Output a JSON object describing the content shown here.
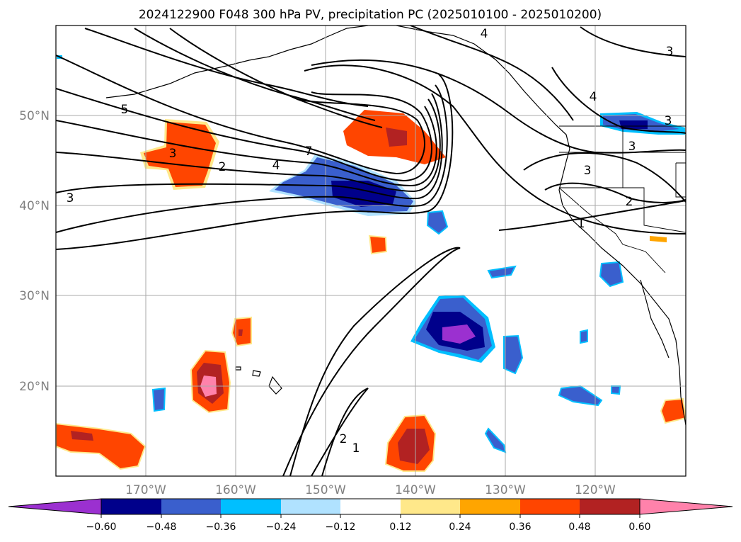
{
  "title": "2024122900 F048 300 hPa PV, precipitation PC (2025010100 - 2025010200)",
  "lon_labels": [
    "170°W",
    "160°W",
    "150°W",
    "140°W",
    "130°W",
    "120°W"
  ],
  "lat_labels": [
    "50°N",
    "40°N",
    "30°N",
    "20°N"
  ],
  "colorbar": {
    "ticks": [
      "−0.60",
      "−0.48",
      "−0.36",
      "−0.24",
      "−0.12",
      "0.12",
      "0.24",
      "0.36",
      "0.48",
      "0.60"
    ],
    "colors": [
      "#9b30d0",
      "#00008b",
      "#3a5fcd",
      "#00bfff",
      "#b0e2ff",
      "#ffffff",
      "#ffe88a",
      "#ffa500",
      "#ff4500",
      "#b22222",
      "#ff82ab"
    ]
  },
  "contour_labels": [
    "4",
    "3",
    "5",
    "3",
    "2",
    "4",
    "7",
    "3",
    "4",
    "3",
    "3",
    "3",
    "2",
    "1",
    "2",
    "1"
  ]
}
